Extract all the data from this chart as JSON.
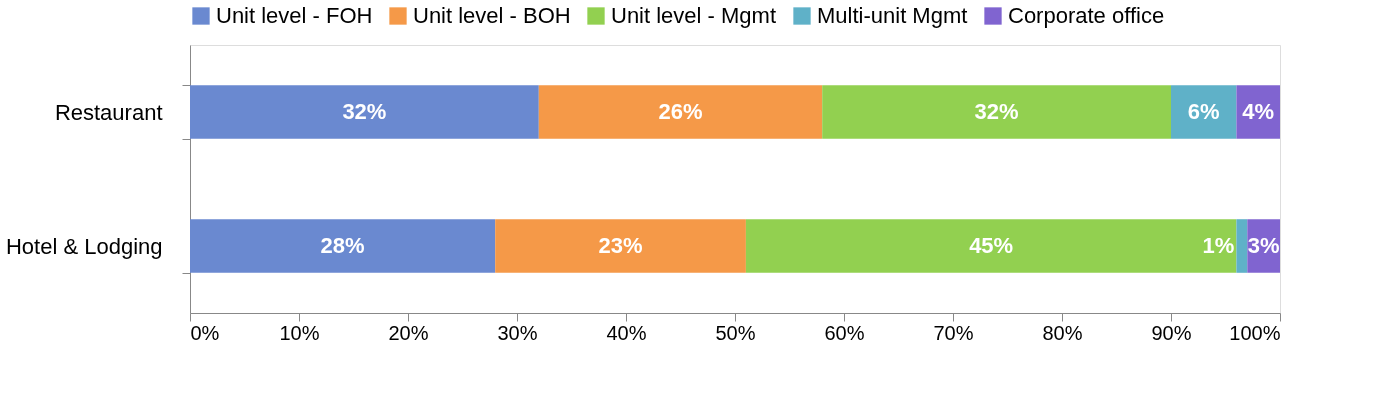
{
  "chart_data": {
    "type": "bar",
    "orientation": "horizontal",
    "stacked": true,
    "categories": [
      "Restaurant",
      "Hotel & Lodging"
    ],
    "series": [
      {
        "name": "Unit level - FOH",
        "color": "#6a89d0",
        "values": [
          32,
          28
        ],
        "value_labels": [
          "32%",
          "28%"
        ]
      },
      {
        "name": "Unit level - BOH",
        "color": "#f59948",
        "values": [
          26,
          23
        ],
        "value_labels": [
          "26%",
          "23%"
        ]
      },
      {
        "name": "Unit level - Mgmt",
        "color": "#92d050",
        "values": [
          32,
          45
        ],
        "value_labels": [
          "32%",
          "45%"
        ]
      },
      {
        "name": "Multi-unit Mgmt",
        "color": "#5fb1c8",
        "values": [
          6,
          1
        ],
        "value_labels": [
          "6%",
          "1%"
        ]
      },
      {
        "name": "Corporate office",
        "color": "#8064d0",
        "values": [
          4,
          3
        ],
        "value_labels": [
          "4%",
          "3%"
        ]
      }
    ],
    "xlim": [
      0,
      100
    ],
    "xticks": [
      {
        "value": 0,
        "label": "0%"
      },
      {
        "value": 10,
        "label": "10%"
      },
      {
        "value": 20,
        "label": "20%"
      },
      {
        "value": 30,
        "label": "30%"
      },
      {
        "value": 40,
        "label": "40%"
      },
      {
        "value": 50,
        "label": "50%"
      },
      {
        "value": 60,
        "label": "60%"
      },
      {
        "value": 70,
        "label": "70%"
      },
      {
        "value": 80,
        "label": "80%"
      },
      {
        "value": 90,
        "label": "90%"
      },
      {
        "value": 100,
        "label": "100%"
      }
    ],
    "legend": "top",
    "grid": false
  }
}
